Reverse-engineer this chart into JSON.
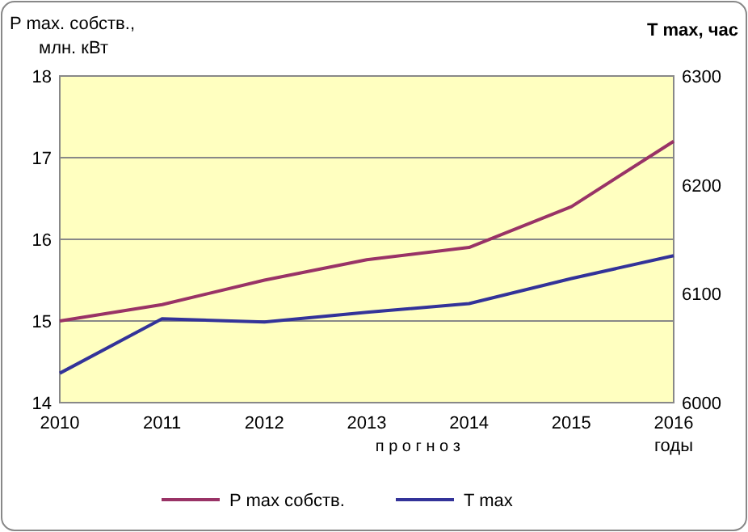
{
  "chart_data": {
    "type": "line",
    "ylabel": "P max. собств., млн. кВт",
    "y2label": "T max, час",
    "xlabel": "годы",
    "categories": [
      "2010",
      "2011",
      "2012",
      "2013",
      "2014",
      "2015",
      "2016"
    ],
    "series": [
      {
        "name": "P max собств.",
        "color": "#993366",
        "values": [
          15.0,
          15.2,
          15.5,
          15.75,
          15.9,
          16.4,
          17.2
        ]
      },
      {
        "name": "T max",
        "color": "#333399",
        "axis": "y2",
        "values": [
          6027,
          6077,
          6074,
          6083,
          6091,
          6114,
          6135
        ]
      }
    ],
    "ylim": [
      14,
      18
    ],
    "yticks": [
      14,
      15,
      16,
      17,
      18
    ],
    "y2lim": [
      6000,
      6300
    ],
    "y2ticks": [
      6000,
      6100,
      6200,
      6300
    ],
    "grid": "y",
    "legend": "bottom",
    "marker": "none",
    "line_style": "solid",
    "annotations": [
      "п р о г н о з"
    ]
  }
}
